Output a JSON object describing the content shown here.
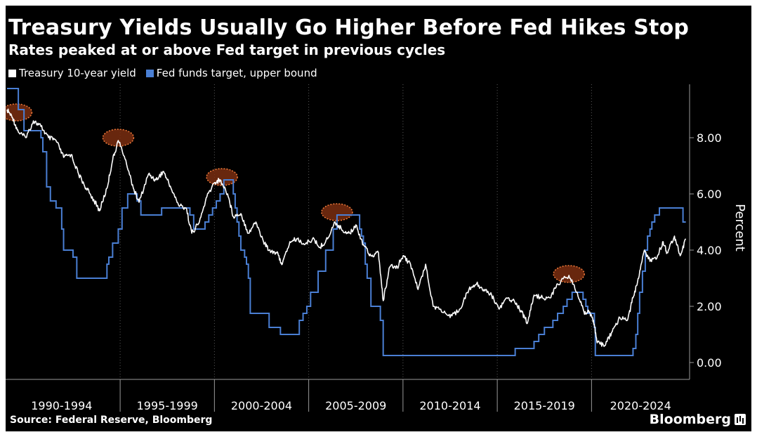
{
  "chart_data": {
    "type": "line",
    "title": "Treasury Yields Usually Go Higher Before Fed Hikes Stop",
    "subtitle": "Rates peaked at or above Fed target in previous cycles",
    "ylabel": "Percent",
    "ylim": [
      -0.6,
      9.9
    ],
    "xlim": [
      1989.0,
      2025.2
    ],
    "yticks": [
      0,
      2,
      4,
      6,
      8
    ],
    "ytick_labels": [
      "0.00",
      "2.00",
      "4.00",
      "6.00",
      "8.00"
    ],
    "x_period_separators": [
      1995,
      2000,
      2005,
      2010,
      2015,
      2020
    ],
    "x_period_labels": [
      {
        "label": "1990-1994",
        "center": 1991.9
      },
      {
        "label": "1995-1999",
        "center": 1997.5
      },
      {
        "label": "2000-2004",
        "center": 2002.5
      },
      {
        "label": "2005-2009",
        "center": 2007.5
      },
      {
        "label": "2010-2014",
        "center": 2012.5
      },
      {
        "label": "2015-2019",
        "center": 2017.5
      },
      {
        "label": "2020-2024",
        "center": 2022.6
      }
    ],
    "legend_position": "top-left",
    "grid": "vertical dotted at period boundaries",
    "source": "Source: Federal Reserve, Bloomberg",
    "brand": "Bloomberg",
    "series": [
      {
        "name": "Treasury 10-year yield",
        "color": "#ffffff",
        "x": [
          1989.0,
          1989.3,
          1989.6,
          1990.0,
          1990.4,
          1990.8,
          1991.2,
          1991.6,
          1992.0,
          1992.4,
          1992.8,
          1993.2,
          1993.6,
          1993.9,
          1994.3,
          1994.6,
          1994.9,
          1995.3,
          1995.7,
          1996.0,
          1996.5,
          1996.9,
          1997.3,
          1997.7,
          1998.1,
          1998.5,
          1998.8,
          1999.2,
          1999.6,
          2000.0,
          2000.3,
          2000.7,
          2001.0,
          2001.4,
          2001.8,
          2002.2,
          2002.6,
          2002.9,
          2003.3,
          2003.6,
          2004.0,
          2004.4,
          2004.8,
          2005.2,
          2005.6,
          2006.0,
          2006.4,
          2006.8,
          2007.2,
          2007.5,
          2007.9,
          2008.3,
          2008.7,
          2008.95,
          2009.3,
          2009.7,
          2010.0,
          2010.4,
          2010.8,
          2011.2,
          2011.6,
          2012.0,
          2012.5,
          2013.0,
          2013.5,
          2013.9,
          2014.3,
          2014.7,
          2015.1,
          2015.5,
          2015.9,
          2016.3,
          2016.6,
          2016.95,
          2017.4,
          2017.8,
          2018.2,
          2018.8,
          2019.2,
          2019.6,
          2019.9,
          2020.1,
          2020.3,
          2020.7,
          2021.1,
          2021.5,
          2021.9,
          2022.2,
          2022.5,
          2022.8,
          2023.1,
          2023.5,
          2023.8,
          2024.0,
          2024.4,
          2024.7,
          2025.0
        ],
        "y": [
          9.0,
          8.7,
          8.2,
          8.0,
          8.6,
          8.4,
          8.0,
          7.9,
          7.3,
          7.4,
          6.7,
          6.2,
          5.8,
          5.4,
          6.2,
          7.2,
          7.9,
          7.2,
          6.2,
          5.7,
          6.7,
          6.5,
          6.8,
          6.2,
          5.6,
          5.5,
          4.6,
          5.0,
          5.9,
          6.4,
          6.5,
          6.0,
          5.2,
          5.3,
          4.6,
          5.0,
          4.3,
          4.0,
          3.9,
          3.5,
          4.3,
          4.4,
          4.2,
          4.4,
          4.1,
          4.4,
          5.0,
          4.7,
          4.6,
          4.9,
          4.2,
          3.8,
          3.9,
          2.2,
          3.4,
          3.4,
          3.8,
          3.5,
          2.6,
          3.5,
          2.0,
          1.9,
          1.6,
          1.9,
          2.6,
          2.8,
          2.6,
          2.4,
          1.9,
          2.3,
          2.2,
          1.8,
          1.4,
          2.4,
          2.3,
          2.3,
          2.8,
          3.1,
          2.5,
          1.8,
          1.8,
          1.5,
          0.7,
          0.6,
          1.1,
          1.6,
          1.5,
          2.3,
          3.0,
          4.0,
          3.6,
          3.8,
          4.3,
          3.9,
          4.5,
          3.8,
          4.4
        ]
      },
      {
        "name": "Fed funds target, upper bound",
        "color": "#4a7fd4",
        "x": [
          1989.0,
          1989.4,
          1989.6,
          1989.9,
          1990.5,
          1990.8,
          1990.9,
          1991.1,
          1991.3,
          1991.6,
          1991.9,
          1992.0,
          1992.5,
          1992.7,
          1994.1,
          1994.3,
          1994.4,
          1994.6,
          1994.9,
          1995.1,
          1995.4,
          1995.9,
          1996.1,
          1997.2,
          1998.7,
          1998.9,
          1999.5,
          1999.7,
          1999.9,
          2000.1,
          2000.3,
          2000.5,
          2001.0,
          2001.1,
          2001.2,
          2001.3,
          2001.4,
          2001.6,
          2001.7,
          2001.8,
          2001.9,
          2002.9,
          2003.5,
          2004.5,
          2004.7,
          2004.9,
          2005.1,
          2005.5,
          2005.9,
          2006.3,
          2006.5,
          2007.7,
          2007.8,
          2007.9,
          2008.0,
          2008.1,
          2008.3,
          2008.8,
          2008.95,
          2015.95,
          2016.95,
          2017.2,
          2017.5,
          2017.95,
          2018.2,
          2018.5,
          2018.7,
          2018.97,
          2019.55,
          2019.7,
          2019.8,
          2020.15,
          2020.2,
          2022.2,
          2022.35,
          2022.45,
          2022.55,
          2022.7,
          2022.85,
          2022.97,
          2023.1,
          2023.2,
          2023.35,
          2023.6,
          2024.7,
          2024.85,
          2025.0
        ],
        "y": [
          9.75,
          9.75,
          9.0,
          8.25,
          8.25,
          8.0,
          7.5,
          6.25,
          5.75,
          5.5,
          4.75,
          4.0,
          3.75,
          3.0,
          3.0,
          3.5,
          3.75,
          4.25,
          4.75,
          5.5,
          6.0,
          5.75,
          5.25,
          5.5,
          5.25,
          4.75,
          5.0,
          5.25,
          5.5,
          5.75,
          6.0,
          6.5,
          6.0,
          5.5,
          5.0,
          4.5,
          4.0,
          3.75,
          3.5,
          3.0,
          1.75,
          1.25,
          1.0,
          1.5,
          1.75,
          2.0,
          2.5,
          3.25,
          4.0,
          4.75,
          5.25,
          4.75,
          4.5,
          4.25,
          3.5,
          3.0,
          2.0,
          1.5,
          0.25,
          0.5,
          0.75,
          1.0,
          1.25,
          1.5,
          1.75,
          2.0,
          2.25,
          2.5,
          2.25,
          2.0,
          1.75,
          1.25,
          0.25,
          0.5,
          1.0,
          1.75,
          2.5,
          3.25,
          4.0,
          4.5,
          4.75,
          5.0,
          5.25,
          5.5,
          5.5,
          5.0,
          5.0
        ]
      }
    ],
    "highlights": [
      {
        "x": 1989.5,
        "y": 8.9
      },
      {
        "x": 1994.9,
        "y": 8.0
      },
      {
        "x": 2000.4,
        "y": 6.6
      },
      {
        "x": 2006.5,
        "y": 5.35
      },
      {
        "x": 2018.8,
        "y": 3.15
      }
    ]
  },
  "colors": {
    "background": "#000000",
    "text": "#ffffff",
    "fed_line": "#4a7fd4",
    "yield_line": "#ffffff",
    "highlight_fill": "#7a2e10",
    "highlight_stroke": "#f07a3a"
  }
}
